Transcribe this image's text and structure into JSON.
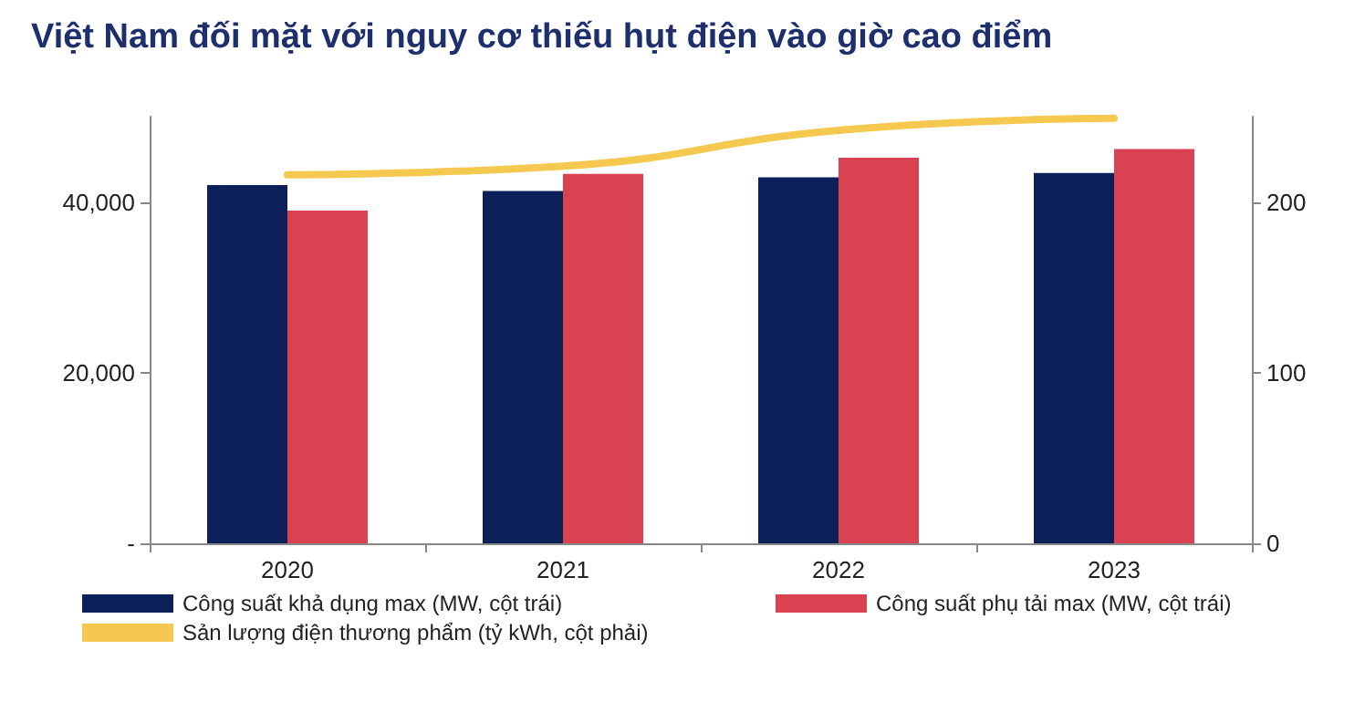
{
  "chart_data": {
    "type": "bar",
    "title": "Việt Nam đối mặt với nguy cơ thiếu hụt điện vào giờ cao điểm",
    "categories": [
      "2020",
      "2021",
      "2022",
      "2023"
    ],
    "series": [
      {
        "name": "Công suất khả dụng max (MW, cột trái)",
        "color": "#0c2059",
        "values": [
          42000,
          41300,
          42900,
          43400
        ]
      },
      {
        "name": "Công suất phụ tải max (MW, cột trái)",
        "color": "#d94251",
        "values": [
          39000,
          43300,
          45200,
          46200
        ]
      },
      {
        "name": "Sản lượng điện thương phẩm (tỷ kWh, cột phải)",
        "type": "line",
        "axis": "y2",
        "color": "#f5c94f",
        "values": [
          216,
          221,
          242,
          249
        ]
      }
    ],
    "ylim": [
      0,
      50000
    ],
    "yticks": [
      {
        "value": 0,
        "label": "-"
      },
      {
        "value": 20000,
        "label": "20,000"
      },
      {
        "value": 40000,
        "label": "40,000"
      }
    ],
    "y2lim": [
      0,
      250
    ],
    "y2ticks": [
      0,
      100,
      200
    ],
    "grid": false,
    "legend": "bottom",
    "marker": "none",
    "line_style": "solid"
  }
}
